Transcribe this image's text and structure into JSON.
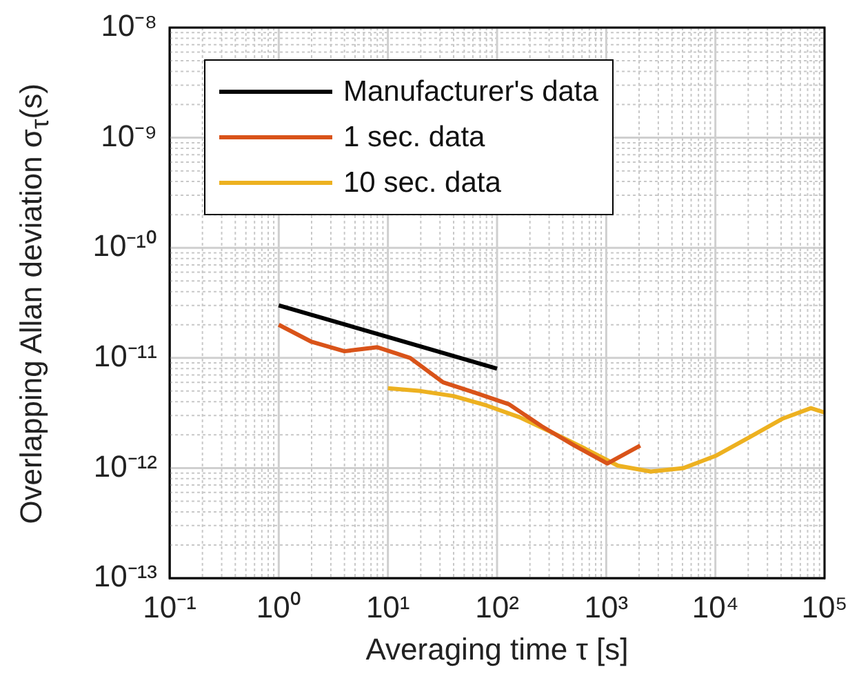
{
  "chart_data": {
    "type": "line",
    "xlabel": "Averaging time τ [s]",
    "ylabel": "Overlapping Allan deviation σ$_{τ}$(s)",
    "log": "xy",
    "grid": true,
    "legend": "top left",
    "line_style": "solid",
    "marker": "none",
    "xlim": [
      0.1,
      100000
    ],
    "xticks": [
      {
        "value": 0.1,
        "label": "10⁻¹"
      },
      {
        "value": 1,
        "label": "10⁰"
      },
      {
        "value": 10,
        "label": "10¹"
      },
      {
        "value": 100,
        "label": "10²"
      },
      {
        "value": 1000,
        "label": "10³"
      },
      {
        "value": 10000,
        "label": "10⁴"
      },
      {
        "value": 100000,
        "label": "10⁵"
      }
    ],
    "ylim": [
      1e-13,
      1e-08
    ],
    "yticks": [
      {
        "value": 1e-13,
        "label": "10⁻¹³"
      },
      {
        "value": 1e-12,
        "label": "10⁻¹²"
      },
      {
        "value": 1e-11,
        "label": "10⁻¹¹"
      },
      {
        "value": 1e-10,
        "label": "10⁻¹⁰"
      },
      {
        "value": 1e-09,
        "label": "10⁻⁹"
      },
      {
        "value": 1e-08,
        "label": "10⁻⁸"
      }
    ],
    "series": [
      {
        "name": "Manufacturer's data",
        "color": "#000000",
        "x": [
          1,
          100
        ],
        "values": [
          3e-11,
          8e-12
        ]
      },
      {
        "name": "1 sec. data",
        "color": "#d95319",
        "x": [
          1,
          2,
          4,
          8,
          16,
          32,
          64,
          128,
          256,
          512,
          1024,
          2048
        ],
        "values": [
          2e-11,
          1.4e-11,
          1.15e-11,
          1.25e-11,
          1e-11,
          6e-12,
          4.8e-12,
          3.8e-12,
          2.4e-12,
          1.6e-12,
          1.1e-12,
          1.6e-12
        ]
      },
      {
        "name": "10 sec. data",
        "color": "#edb120",
        "x": [
          10,
          20,
          40,
          80,
          160,
          320,
          640,
          1280,
          2560,
          5120,
          10240,
          20480,
          40960,
          75000,
          100000
        ],
        "values": [
          5.3e-12,
          5e-12,
          4.5e-12,
          3.7e-12,
          2.9e-12,
          2.1e-12,
          1.5e-12,
          1.05e-12,
          9.3e-13,
          1e-12,
          1.3e-12,
          1.9e-12,
          2.8e-12,
          3.5e-12,
          3.2e-12
        ]
      }
    ]
  }
}
